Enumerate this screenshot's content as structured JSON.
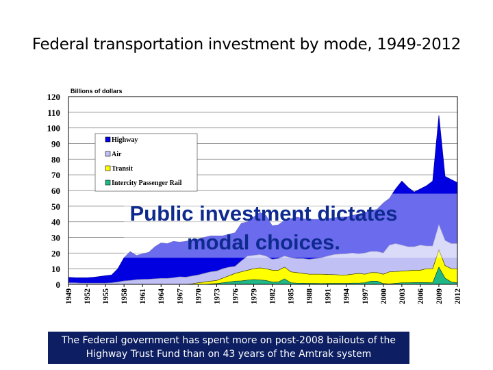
{
  "slide": {
    "title": "Federal transportation investment by mode, 1949-2012",
    "overlay_text": [
      "Public investment dictates",
      "modal choices."
    ],
    "note_lines": [
      "The Federal government has spent more on post-2008 bailouts of the",
      "Highway Trust Fund than on 43 years of the Amtrak system"
    ]
  },
  "chart_data": {
    "type": "area",
    "stacked": true,
    "value_note": "values are cumulative stacked tops (each series top = own value + series below)",
    "ylabel": "Billions of dollars",
    "ylim": [
      0,
      120
    ],
    "yticks": [
      0,
      10,
      20,
      30,
      40,
      50,
      60,
      70,
      80,
      90,
      100,
      110,
      120
    ],
    "x_start": 1949,
    "x_end": 2012,
    "xticks": [
      "1949",
      "1952",
      "1955",
      "1958",
      "1961",
      "1964",
      "1967",
      "1970",
      "1973",
      "1976",
      "1979",
      "1982",
      "1985",
      "1988",
      "1991",
      "1994",
      "1997",
      "2000",
      "2003",
      "2006",
      "2009",
      "2012"
    ],
    "grid": true,
    "legend_position": "top-left",
    "colors": {
      "Highway": "#0000e0",
      "Air": "#c0c0f4",
      "Transit": "#ffff00",
      "Intercity Passenger Rail": "#20b887"
    },
    "series": [
      {
        "name": "Highway",
        "cumulative_top": [
          4.5,
          4.3,
          4.2,
          4.2,
          4.5,
          5,
          5.5,
          6,
          10,
          17,
          21,
          18.5,
          19.5,
          20.5,
          24,
          26.5,
          26,
          27.5,
          27,
          27.5,
          28.5,
          29,
          30,
          31,
          31,
          31,
          32,
          33,
          39,
          40,
          43,
          46,
          44,
          37.5,
          38,
          41,
          42,
          43,
          42,
          41.5,
          41.5,
          41.5,
          42,
          42.5,
          43,
          43,
          44,
          45,
          46,
          47,
          48,
          52,
          55,
          61,
          66,
          62,
          59,
          61,
          63,
          66,
          108,
          69,
          67,
          65
        ]
      },
      {
        "name": "Air",
        "cumulative_top": [
          1,
          1,
          0.8,
          0.8,
          0.8,
          0.8,
          0.8,
          1,
          1.5,
          2.2,
          2.5,
          3,
          3.2,
          3.3,
          3.6,
          3.8,
          3.8,
          4.2,
          4.8,
          4.6,
          5.3,
          6,
          7,
          8,
          8.5,
          10,
          11,
          11.5,
          15,
          18,
          18.5,
          19,
          18,
          16,
          16.5,
          18,
          17,
          16.5,
          16.5,
          16,
          16.5,
          17,
          18,
          19,
          19.3,
          19.5,
          20,
          19.5,
          20,
          21,
          21,
          20,
          25,
          26,
          25,
          24,
          24,
          25,
          24.5,
          24.5,
          38,
          28,
          26,
          26
        ]
      },
      {
        "name": "Transit",
        "cumulative_top": [
          0,
          0,
          0,
          0,
          0,
          0,
          0,
          0,
          0,
          0,
          0,
          0,
          0,
          0,
          0,
          0,
          0,
          0,
          0,
          0,
          0.3,
          1,
          1.5,
          2,
          2.5,
          4,
          5.5,
          7,
          8,
          9,
          10,
          10.5,
          10,
          9,
          9,
          11,
          8,
          7.5,
          7,
          6.5,
          6.5,
          6.5,
          6.3,
          6.2,
          6,
          6,
          6.5,
          7,
          6.5,
          7.5,
          7.5,
          6.5,
          8,
          8.2,
          8.5,
          8.7,
          9,
          9,
          10,
          10,
          22,
          12,
          10,
          10
        ]
      },
      {
        "name": "Intercity Passenger Rail",
        "cumulative_top": [
          0,
          0,
          0,
          0,
          0,
          0,
          0,
          0,
          0,
          0,
          0,
          0,
          0,
          0,
          0,
          0,
          0,
          0,
          0,
          0,
          0,
          0,
          0,
          0.3,
          0.5,
          1,
          1.5,
          2,
          2.2,
          2.7,
          3,
          2.8,
          2.5,
          1.5,
          1.5,
          3.5,
          1,
          0.8,
          0.7,
          0.6,
          0.6,
          0.5,
          0.6,
          0.6,
          0.6,
          0.6,
          0.8,
          0.8,
          1,
          2,
          2,
          0.5,
          0.3,
          0.6,
          1,
          1,
          1.2,
          1.2,
          1.2,
          1,
          11,
          4,
          1.5,
          1
        ]
      }
    ]
  }
}
